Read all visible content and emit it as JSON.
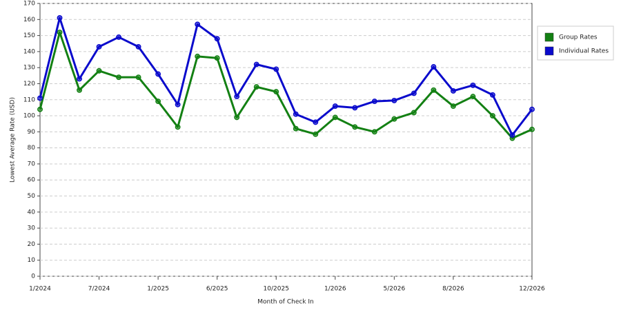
{
  "chart_data": {
    "type": "line",
    "x_label": "Month of Check In",
    "y_label": "Lowest Average Rate (USD)",
    "categories": [
      "1/2024",
      null,
      null,
      "7/2024",
      null,
      null,
      "1/2025",
      null,
      null,
      "6/2025",
      null,
      null,
      "10/2025",
      null,
      null,
      "1/2026",
      null,
      null,
      "5/2026",
      null,
      null,
      "8/2026",
      null,
      null,
      null,
      "12/2026"
    ],
    "series": [
      {
        "name": "Group Rates",
        "color": "#138013",
        "values": [
          104,
          152,
          116,
          128,
          124,
          124,
          109,
          93,
          137,
          136,
          99,
          118,
          115,
          92,
          88.5,
          99,
          93,
          90,
          98,
          102,
          116,
          106,
          112,
          100,
          86,
          91.5
        ]
      },
      {
        "name": "Individual Rates",
        "color": "#0a0acc",
        "values": [
          111,
          161,
          123,
          143,
          149,
          143,
          126,
          107,
          157,
          148,
          112,
          132,
          129,
          101,
          96,
          106,
          105,
          109,
          109.5,
          114,
          130.5,
          115.5,
          119,
          113,
          88,
          104
        ]
      }
    ],
    "ylim": [
      0,
      170
    ],
    "yticks": [
      0,
      10,
      20,
      30,
      40,
      50,
      60,
      70,
      80,
      90,
      100,
      110,
      120,
      130,
      140,
      150,
      160,
      170
    ],
    "grid": true,
    "legend": "right"
  }
}
